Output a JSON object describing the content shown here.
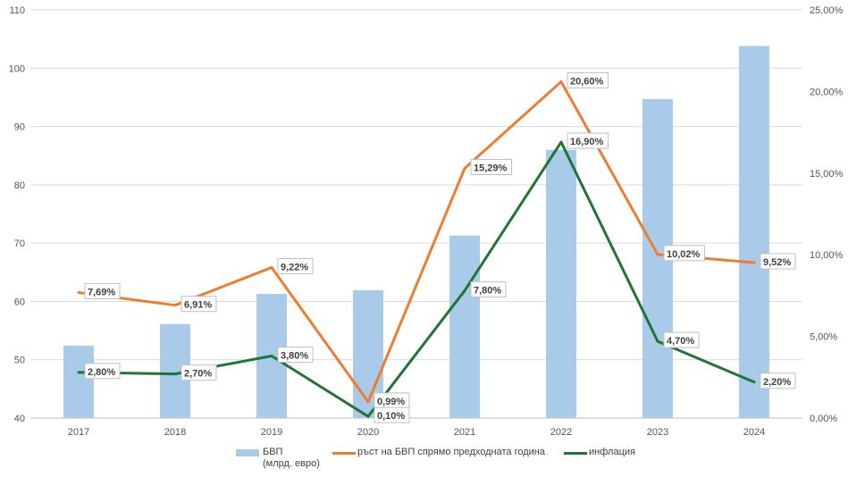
{
  "colors": {
    "bars": "#a9cbe9",
    "growth_line": "#ed7d31",
    "inflation_line": "#217434",
    "grid": "#d9d9d9",
    "axis": "#bfbfbf"
  },
  "legend": {
    "bars_label_line1": "БВП",
    "bars_label_line2": "(млрд. евро)",
    "growth_label": "ръст на БВП спрямо предходната година",
    "inflation_label": "инфлация"
  },
  "chart_data": {
    "type": "bar",
    "categories": [
      "2017",
      "2018",
      "2019",
      "2020",
      "2021",
      "2022",
      "2023",
      "2024"
    ],
    "left_axis": {
      "ylim": [
        40,
        110
      ],
      "ticks": [
        "40",
        "50",
        "60",
        "70",
        "80",
        "90",
        "100",
        "110"
      ]
    },
    "right_axis": {
      "ylim": [
        0,
        25
      ],
      "ticks": [
        "0,00%",
        "5,00%",
        "10,00%",
        "15,00%",
        "20,00%",
        "25,00%"
      ]
    },
    "grid": true,
    "legend_position": "bottom",
    "series": [
      {
        "name": "БВП (млрд. евро)",
        "type": "bar",
        "axis": "left",
        "values": [
          52.4,
          56.1,
          61.3,
          61.9,
          71.3,
          86.0,
          94.7,
          103.8
        ]
      },
      {
        "name": "ръст на БВП спрямо предходната година",
        "type": "line",
        "axis": "right",
        "values": [
          7.69,
          6.91,
          9.22,
          0.99,
          15.29,
          20.6,
          10.02,
          9.52
        ],
        "labels": [
          "7,69%",
          "6,91%",
          "9,22%",
          "0,99%",
          "15,29%",
          "20,60%",
          "10,02%",
          "9,52%"
        ]
      },
      {
        "name": "инфлация",
        "type": "line",
        "axis": "right",
        "values": [
          2.8,
          2.7,
          3.8,
          0.1,
          7.8,
          16.9,
          4.7,
          2.2
        ],
        "labels": [
          "2,80%",
          "2,70%",
          "3,80%",
          "0,10%",
          "7,80%",
          "16,90%",
          "4,70%",
          "2,20%"
        ]
      }
    ]
  }
}
